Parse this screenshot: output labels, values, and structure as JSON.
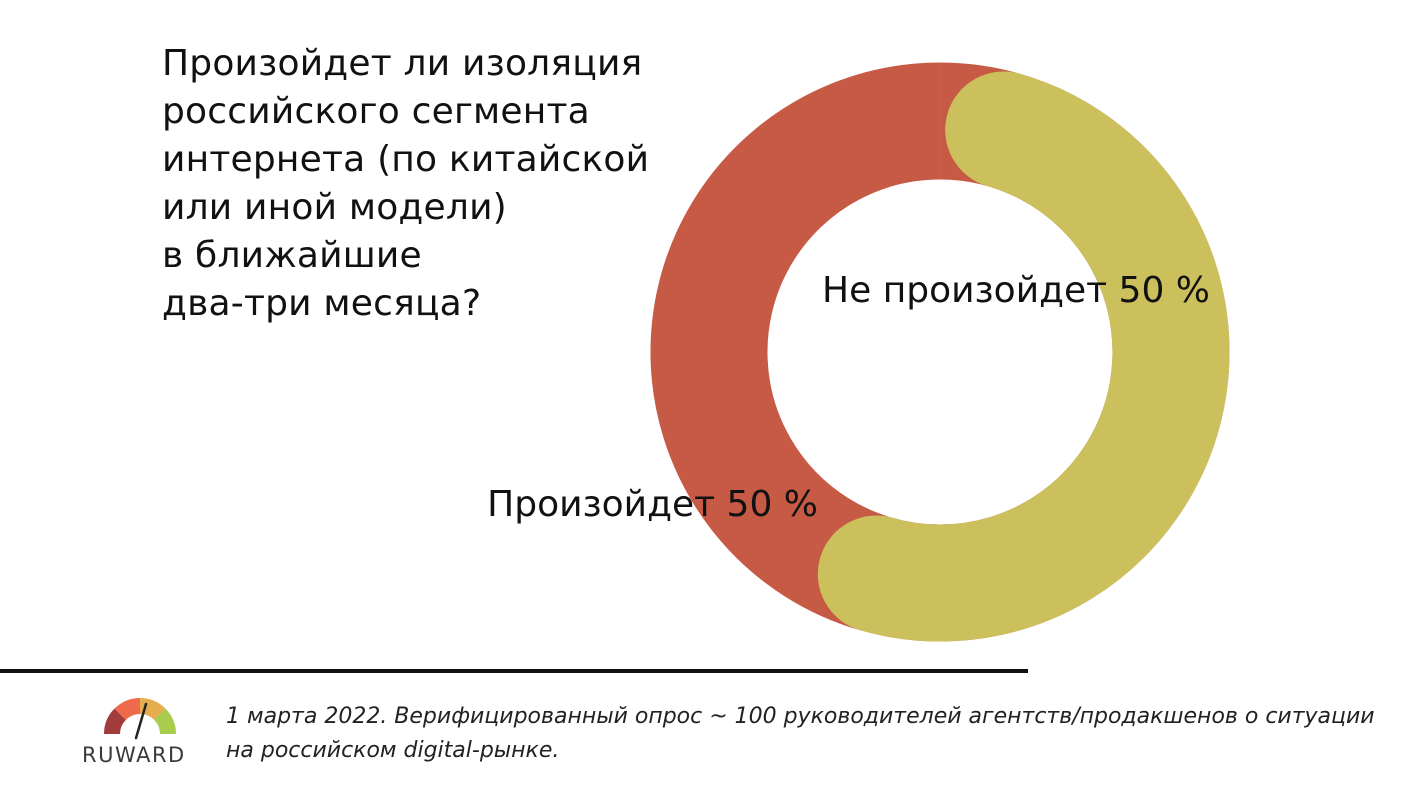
{
  "question": "Произойдет ли изоляция\nроссийского сегмента\nинтернета (по китайской\nили иной модели)\nв ближайшие\nдва-три месяца?",
  "chart_data": {
    "type": "pie",
    "style": "donut",
    "title": "",
    "slices": [
      {
        "label": "Не произойдет",
        "value": 50,
        "value_label": "50 %",
        "color": "#cbc05c"
      },
      {
        "label": "Произойдет",
        "value": 50,
        "value_label": "50 %",
        "color": "#c65a45"
      }
    ],
    "legend": "none"
  },
  "footnote": "1 марта 2022. Верифицированный опрос ~ 100 руководителей агентств/продакшенов о ситуации на российском digital-рынке.",
  "logo": {
    "text": "RUWARD",
    "gauge_colors": [
      "#a23b3b",
      "#ee6a4a",
      "#e6ad4e",
      "#a9cc4f"
    ],
    "needle_color": "#222222"
  }
}
